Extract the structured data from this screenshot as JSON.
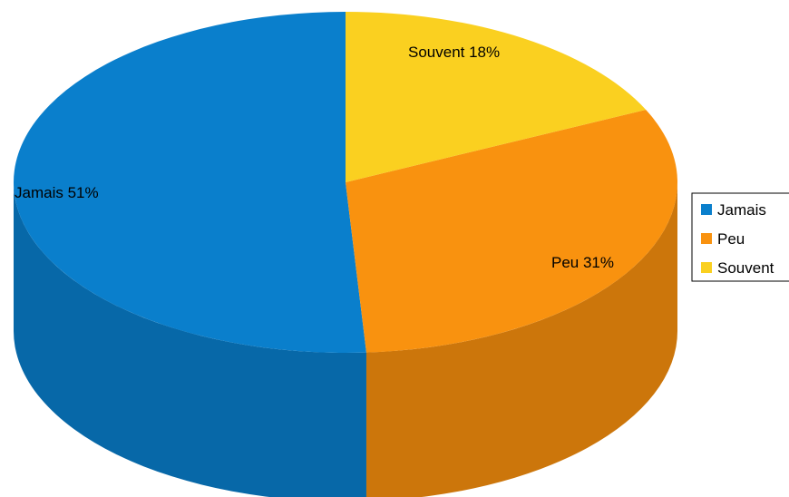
{
  "chart_data": {
    "type": "pie",
    "style": "3d",
    "title": "",
    "categories": [
      "Jamais",
      "Peu",
      "Souvent"
    ],
    "values": [
      51,
      31,
      18
    ],
    "unit": "%",
    "data_labels": [
      "Jamais 51%",
      "Peu 31%",
      "Souvent 18%"
    ],
    "colors": [
      "#0a7fcc",
      "#f9920f",
      "#fad020"
    ],
    "side_colors": [
      "#0768a8",
      "#cc760b",
      "#d8b018"
    ],
    "legend": {
      "position": "right",
      "entries": [
        "Jamais",
        "Peu",
        "Souvent"
      ]
    }
  }
}
